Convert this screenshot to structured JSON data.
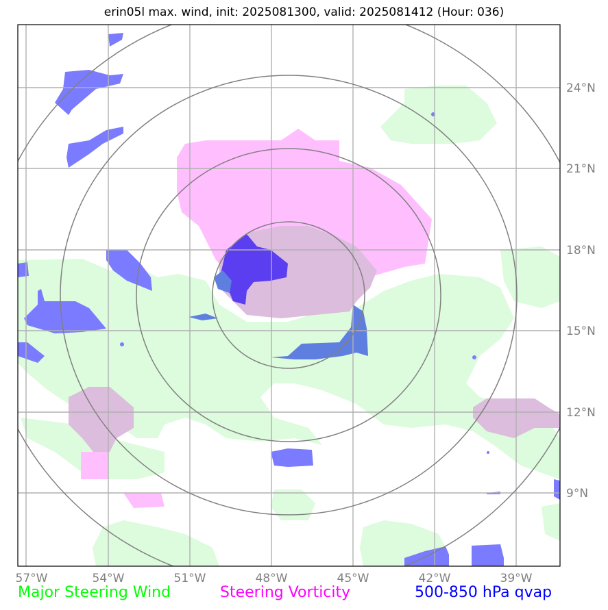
{
  "title": "erin05l max. wind, init: 2025081300, valid: 2025081412 (Hour: 036)",
  "axes": {
    "longitude_labels": [
      "57°W",
      "54°W",
      "51°W",
      "48°W",
      "45°W",
      "42°W",
      "39°W"
    ],
    "latitude_labels": [
      "24°N",
      "21°N",
      "18°N",
      "15°N",
      "12°N",
      "9°N"
    ],
    "tick_color": "#808080"
  },
  "legend": {
    "wind": {
      "label": "Major Steering Wind",
      "color": "#00ff00"
    },
    "vorticity": {
      "label": "Steering Vorticity",
      "color": "#ff00ff"
    },
    "qvap": {
      "label": "500-850 hPa qvap",
      "color": "#0000ff"
    }
  },
  "layers": {
    "wind_fill": "#ddfbdd",
    "vorticity_fill": "#ffbfff",
    "overlap_fill": "#ddbddd",
    "qvap_fill": "#7b7bff",
    "qvap_dense_fill": "#5a3ef0",
    "qvap_overlap_fill": "#5f7fe0",
    "range_ring_color": "#808080",
    "grid_color": "#b0b0b0"
  }
}
